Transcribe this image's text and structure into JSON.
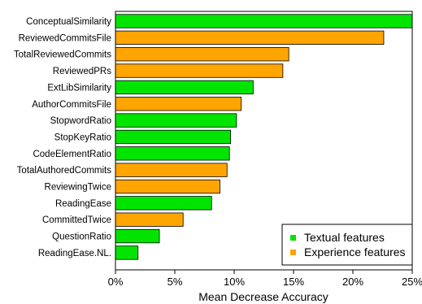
{
  "chart_data": {
    "type": "bar",
    "orientation": "horizontal",
    "title": "",
    "xlabel": "Mean Decrease Accuracy",
    "ylabel": "",
    "xlim": [
      0,
      25
    ],
    "x_ticks": [
      "0%",
      "5%",
      "10%",
      "15%",
      "20%",
      "25%"
    ],
    "x_tick_values": [
      0,
      5,
      10,
      15,
      20,
      25
    ],
    "legend_position": "bottom-right",
    "series": [
      {
        "name": "Textual features",
        "color": "#00e400"
      },
      {
        "name": "Experience features",
        "color": "#ffa500"
      }
    ],
    "categories": [
      "ConceptualSimilarity",
      "ReviewedCommitsFile",
      "TotalReviewedCommits",
      "ReviewedPRs",
      "ExtLibSimilarity",
      "AuthorCommitsFile",
      "StopwordRatio",
      "StopKeyRatio",
      "CodeElementRatio",
      "TotalAuthoredCommits",
      "ReviewingTwice",
      "ReadingEase",
      "CommittedTwice",
      "QuestionRatio",
      "ReadingEase.NL."
    ],
    "values": [
      25.3,
      22.6,
      14.6,
      14.1,
      11.6,
      10.6,
      10.2,
      9.7,
      9.6,
      9.4,
      8.8,
      8.1,
      5.7,
      3.7,
      1.9
    ],
    "groups": [
      "Textual features",
      "Experience features",
      "Experience features",
      "Experience features",
      "Textual features",
      "Experience features",
      "Textual features",
      "Textual features",
      "Textual features",
      "Experience features",
      "Experience features",
      "Textual features",
      "Experience features",
      "Textual features",
      "Textual features"
    ]
  }
}
